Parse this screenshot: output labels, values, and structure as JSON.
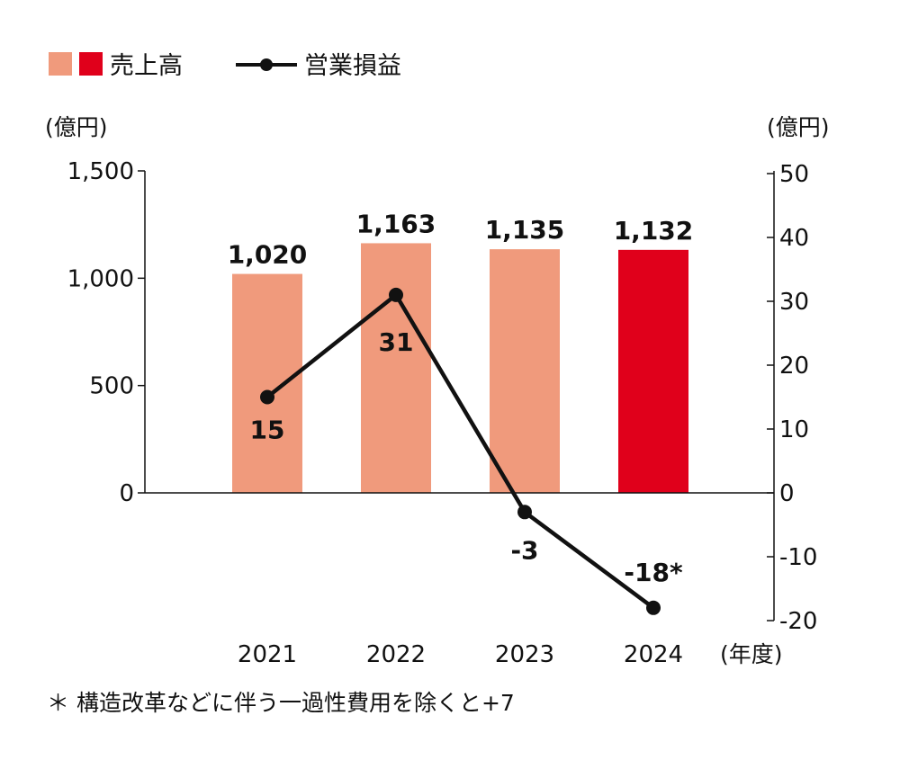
{
  "chart_data": {
    "type": "bar+line",
    "categories": [
      "2021",
      "2022",
      "2023",
      "2024"
    ],
    "x_unit_label": "(年度)",
    "legend": {
      "placement": "top-left",
      "bar_label": "売上高",
      "line_label": "営業損益"
    },
    "left_axis": {
      "unit_label": "(億円)",
      "ylim": [
        0,
        1500
      ],
      "ticks": [
        "0",
        "500",
        "1,000",
        "1,500"
      ],
      "tick_values": [
        0,
        500,
        1000,
        1500
      ]
    },
    "right_axis": {
      "unit_label": "(億円)",
      "ylim": [
        -20,
        50
      ],
      "ticks": [
        "-20",
        "-10",
        "0",
        "10",
        "20",
        "30",
        "40",
        "50"
      ],
      "tick_values": [
        -20,
        -10,
        0,
        10,
        20,
        30,
        40,
        50
      ]
    },
    "series": [
      {
        "name": "売上高",
        "kind": "bar",
        "axis": "left",
        "values": [
          1020,
          1163,
          1135,
          1132
        ],
        "labels": [
          "1,020",
          "1,163",
          "1,135",
          "1,132"
        ],
        "colors": [
          "#f09a7c",
          "#f09a7c",
          "#f09a7c",
          "#e0001b"
        ]
      },
      {
        "name": "営業損益",
        "kind": "line",
        "axis": "right",
        "values": [
          15,
          31,
          -3,
          -18
        ],
        "labels": [
          "15",
          "31",
          "-3",
          "-18*"
        ],
        "color": "#111111"
      }
    ],
    "grid": false,
    "footnote": "＊ 構造改革などに伴う一過性費用を除くと+7"
  }
}
